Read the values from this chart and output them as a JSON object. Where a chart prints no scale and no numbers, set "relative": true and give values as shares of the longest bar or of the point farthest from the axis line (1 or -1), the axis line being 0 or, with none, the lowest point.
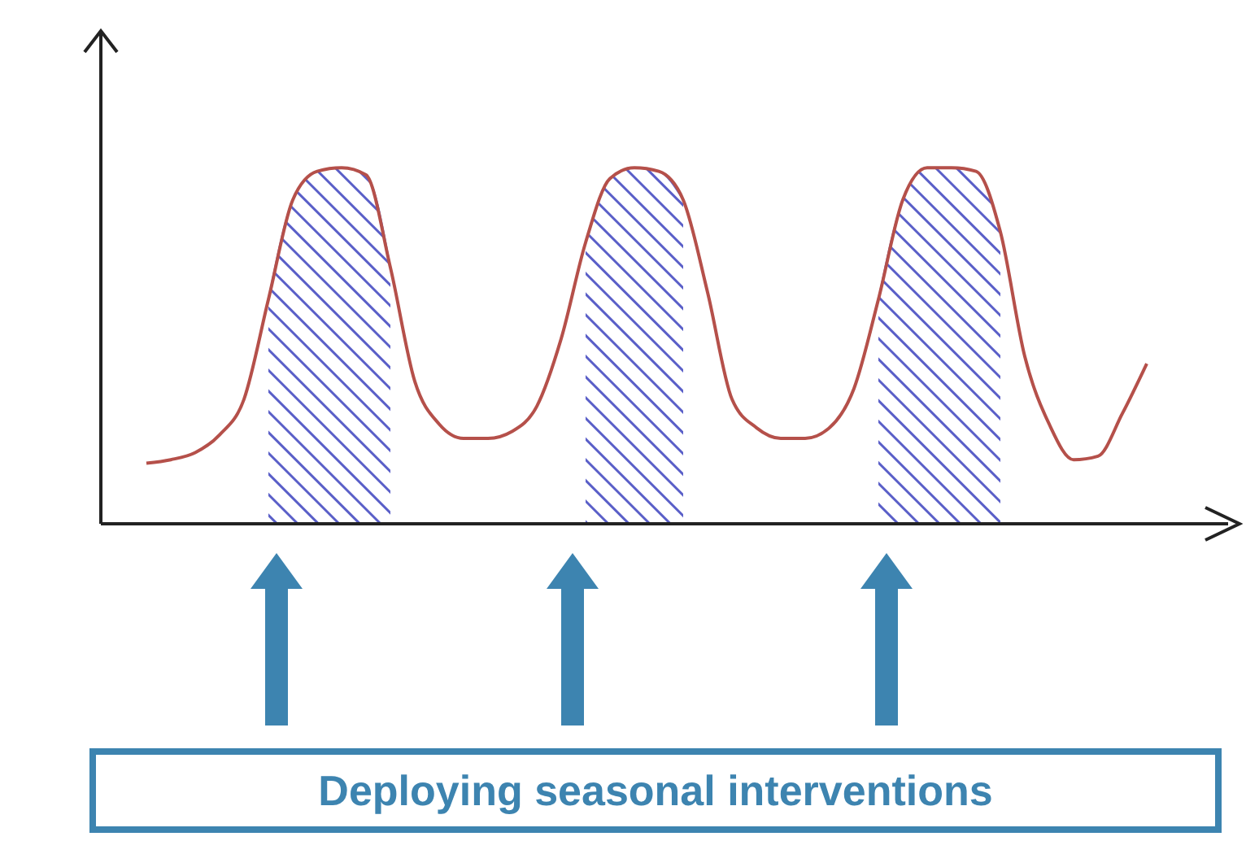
{
  "chart_data": {
    "type": "line",
    "relative": true,
    "categories": [
      null,
      null,
      null,
      null,
      null,
      null,
      null,
      null,
      null,
      null,
      null,
      null,
      null,
      null,
      null,
      null,
      null,
      null,
      null,
      null,
      null,
      null,
      null,
      null,
      null,
      null,
      null,
      null,
      null,
      null,
      null,
      null,
      null,
      null,
      null,
      null,
      null,
      null,
      null,
      null,
      null,
      null
    ],
    "series": [
      {
        "color": "#b5504a",
        "values": [
          0.17,
          0.18,
          0.2,
          0.25,
          0.35,
          0.63,
          0.91,
          0.99,
          1,
          0.98,
          0.72,
          0.4,
          0.28,
          0.24,
          0.24,
          0.26,
          0.33,
          0.52,
          0.79,
          0.97,
          1,
          0.99,
          0.91,
          0.65,
          0.35,
          0.27,
          0.24,
          0.24,
          0.27,
          0.38,
          0.63,
          0.91,
          1,
          1,
          0.99,
          0.82,
          0.47,
          0.28,
          0.18,
          0.19,
          0.31,
          0.45
        ]
      },
      {
        "type": "area",
        "color": "#5a5fc8",
        "values": [
          null,
          null,
          null,
          null,
          null,
          0.63,
          0.91,
          0.99,
          1,
          0.98,
          0.72,
          null,
          null,
          null,
          null,
          null,
          null,
          null,
          0.79,
          0.97,
          1,
          0.99,
          0.91,
          null,
          null,
          null,
          null,
          null,
          null,
          null,
          0.63,
          0.91,
          1,
          1,
          0.99,
          0.82,
          null,
          null,
          null,
          null,
          null,
          null
        ]
      }
    ],
    "annotations": [
      "Deploying seasonal interventions"
    ],
    "grid": false,
    "marker": "none",
    "line_style": "solid"
  }
}
